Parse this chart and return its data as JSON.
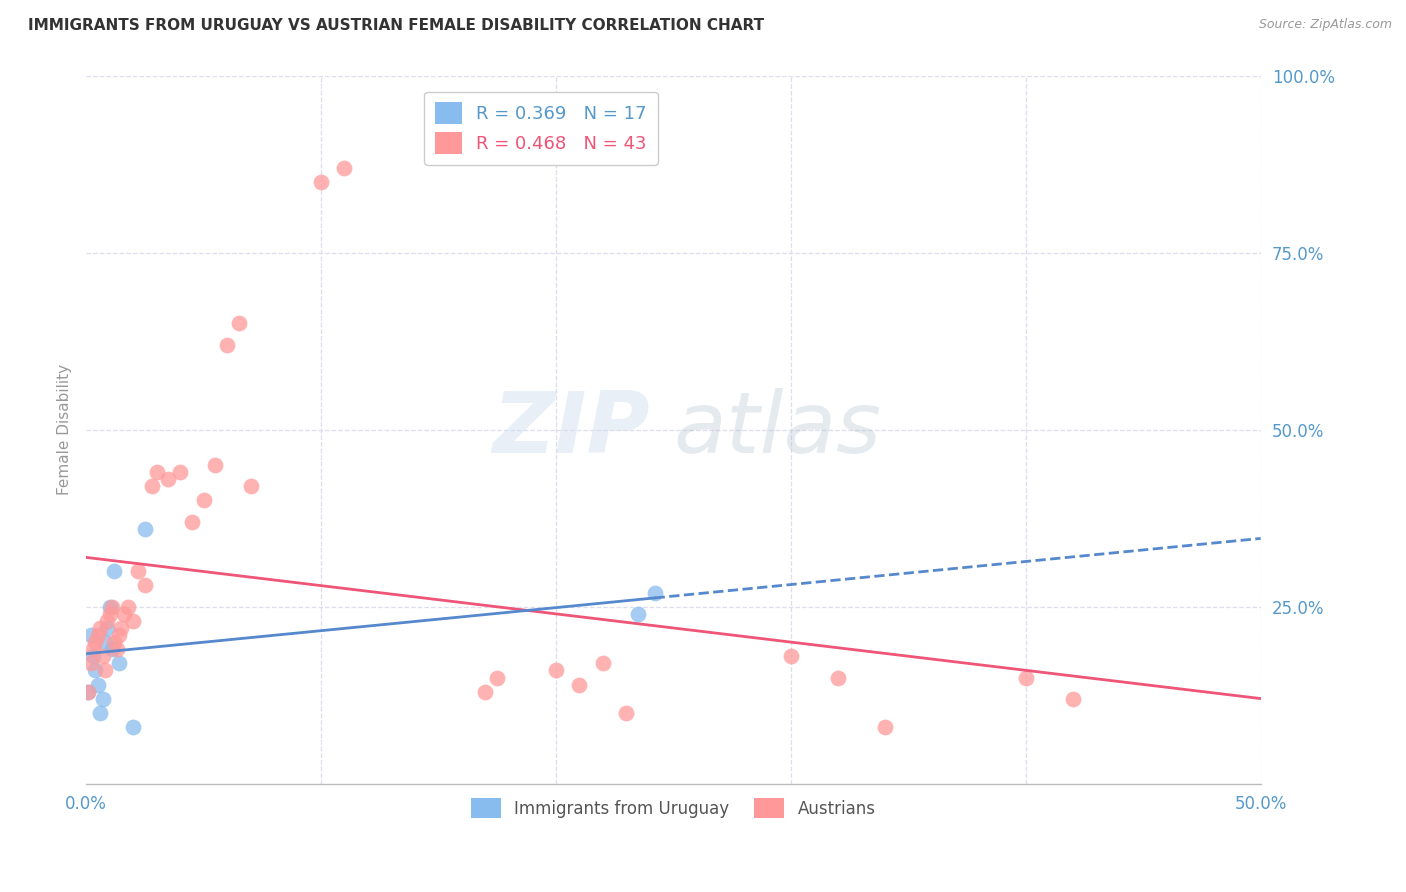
{
  "title": "IMMIGRANTS FROM URUGUAY VS AUSTRIAN FEMALE DISABILITY CORRELATION CHART",
  "source": "Source: ZipAtlas.com",
  "ylabel": "Female Disability",
  "xlim": [
    0.0,
    0.5
  ],
  "ylim": [
    0.0,
    1.0
  ],
  "x_ticks": [
    0.0,
    0.1,
    0.2,
    0.3,
    0.4,
    0.5
  ],
  "x_tick_labels": [
    "0.0%",
    "",
    "",
    "",
    "",
    "50.0%"
  ],
  "y_ticks_right": [
    0.0,
    0.25,
    0.5,
    0.75,
    1.0
  ],
  "y_tick_labels_right": [
    "",
    "25.0%",
    "50.0%",
    "75.0%",
    "100.0%"
  ],
  "watermark_zip": "ZIP",
  "watermark_atlas": "atlas",
  "legend_r1": "R = 0.369",
  "legend_n1": "N = 17",
  "legend_r2": "R = 0.468",
  "legend_n2": "N = 43",
  "blue_scatter_color": "#88BBEE",
  "pink_scatter_color": "#FF9999",
  "blue_line_color": "#5588CC",
  "pink_line_color": "#EE5577",
  "axis_color": "#5599CC",
  "grid_color": "#DDDDEE",
  "uruguay_x": [
    0.001,
    0.002,
    0.003,
    0.004,
    0.005,
    0.006,
    0.007,
    0.008,
    0.009,
    0.01,
    0.011,
    0.012,
    0.014,
    0.02,
    0.025,
    0.235,
    0.242
  ],
  "uruguay_y": [
    0.13,
    0.21,
    0.18,
    0.16,
    0.14,
    0.1,
    0.12,
    0.2,
    0.22,
    0.25,
    0.19,
    0.3,
    0.17,
    0.08,
    0.36,
    0.24,
    0.27
  ],
  "austrian_x": [
    0.001,
    0.002,
    0.003,
    0.004,
    0.005,
    0.006,
    0.007,
    0.008,
    0.009,
    0.01,
    0.011,
    0.012,
    0.013,
    0.014,
    0.015,
    0.016,
    0.018,
    0.02,
    0.022,
    0.025,
    0.028,
    0.03,
    0.035,
    0.04,
    0.045,
    0.05,
    0.055,
    0.06,
    0.065,
    0.07,
    0.1,
    0.11,
    0.17,
    0.175,
    0.2,
    0.21,
    0.22,
    0.23,
    0.3,
    0.32,
    0.34,
    0.4,
    0.42
  ],
  "austrian_y": [
    0.13,
    0.17,
    0.19,
    0.2,
    0.21,
    0.22,
    0.18,
    0.16,
    0.23,
    0.24,
    0.25,
    0.2,
    0.19,
    0.21,
    0.22,
    0.24,
    0.25,
    0.23,
    0.3,
    0.28,
    0.42,
    0.44,
    0.43,
    0.44,
    0.37,
    0.4,
    0.45,
    0.62,
    0.65,
    0.42,
    0.85,
    0.87,
    0.13,
    0.15,
    0.16,
    0.14,
    0.17,
    0.1,
    0.18,
    0.15,
    0.08,
    0.15,
    0.12
  ]
}
